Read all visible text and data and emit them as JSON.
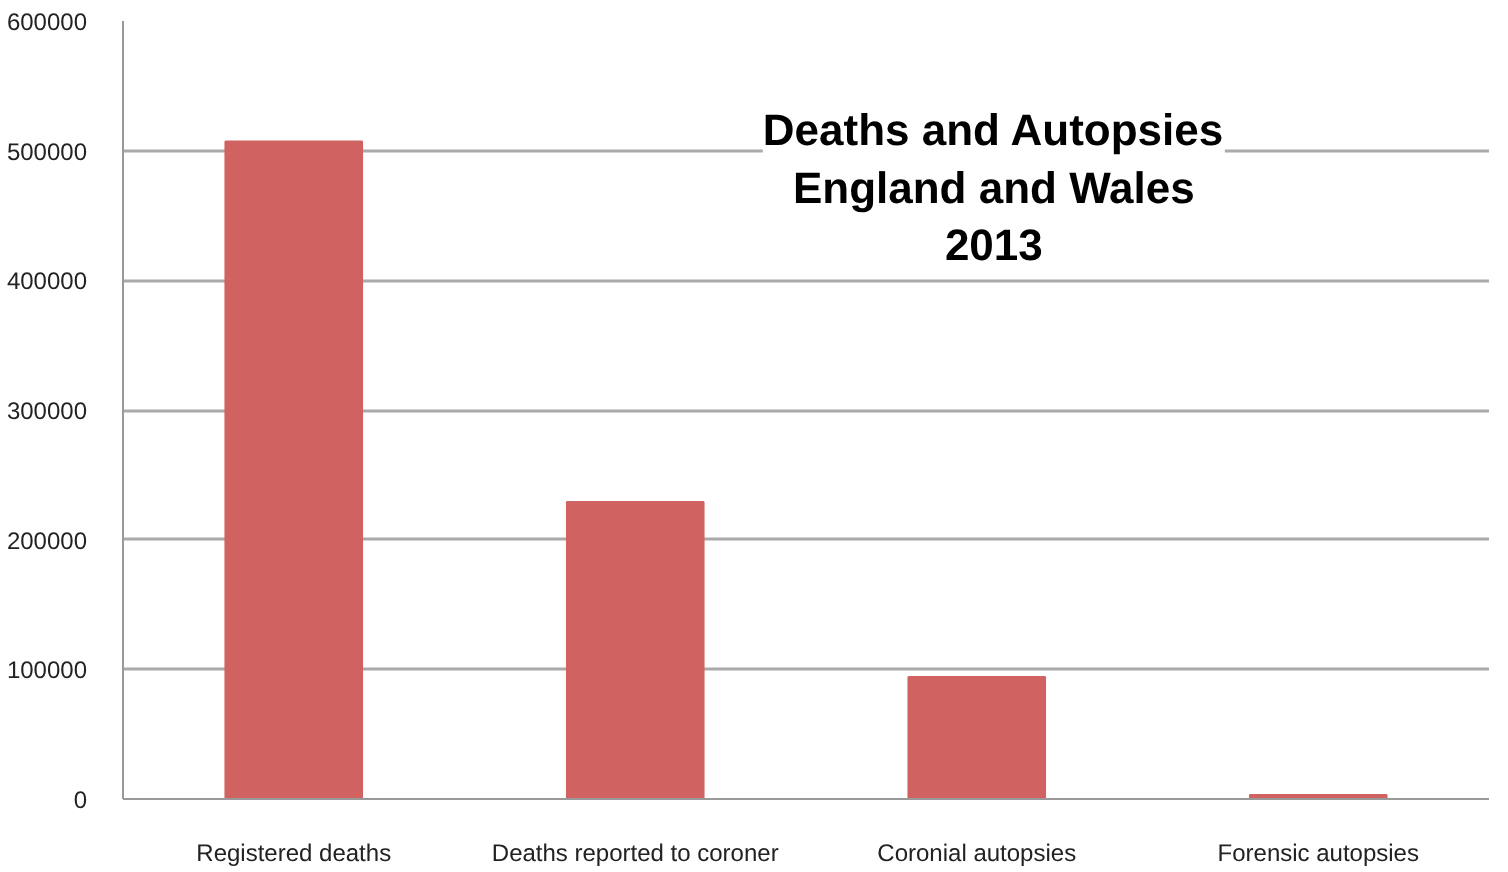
{
  "chart_data": {
    "type": "bar",
    "title": "Deaths and Autopsies\nEngland and Wales\n2013",
    "categories": [
      "Registered deaths",
      "Deaths reported to coroner",
      "Coronial autopsies",
      "Forensic autopsies"
    ],
    "values": [
      507000,
      229000,
      94000,
      3000
    ],
    "color": "#d06361",
    "ylim": [
      0,
      600000
    ],
    "yticks": [
      0,
      100000,
      200000,
      300000,
      400000,
      500000,
      600000
    ],
    "grid": "y"
  }
}
